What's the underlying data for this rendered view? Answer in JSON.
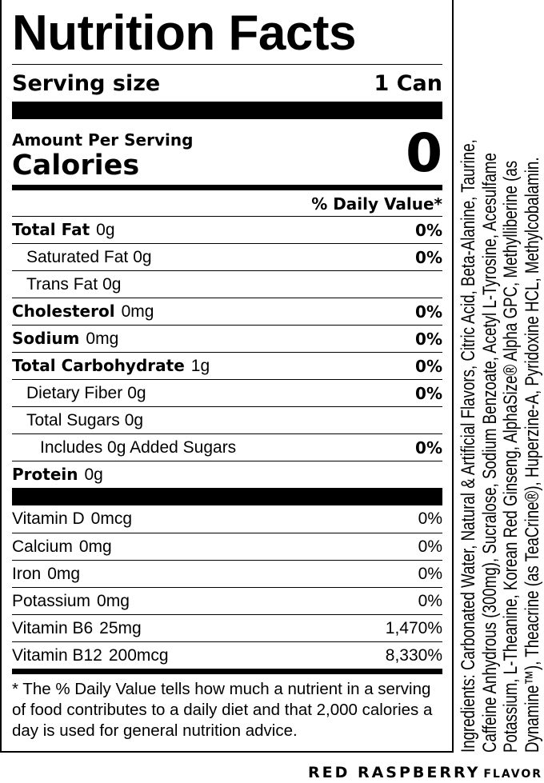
{
  "title": "Nutrition Facts",
  "serving": {
    "label": "Serving size",
    "value": "1 Can"
  },
  "amount_per_serving": "Amount Per Serving",
  "calories": {
    "label": "Calories",
    "value": "0"
  },
  "dv_header": "% Daily Value*",
  "nutrients": [
    {
      "name": "Total Fat",
      "amount": "0g",
      "dv": "0%",
      "bold": true,
      "indent": 0
    },
    {
      "name": "Saturated Fat",
      "amount": "0g",
      "dv": "0%",
      "bold": false,
      "indent": 1
    },
    {
      "name": "Trans Fat",
      "amount": "0g",
      "dv": "",
      "bold": false,
      "indent": 1
    },
    {
      "name": "Cholesterol",
      "amount": "0mg",
      "dv": "0%",
      "bold": true,
      "indent": 0
    },
    {
      "name": "Sodium",
      "amount": "0mg",
      "dv": "0%",
      "bold": true,
      "indent": 0
    },
    {
      "name": "Total Carbohydrate",
      "amount": "1g",
      "dv": "0%",
      "bold": true,
      "indent": 0
    },
    {
      "name": "Dietary Fiber",
      "amount": "0g",
      "dv": "0%",
      "bold": false,
      "indent": 1
    },
    {
      "name": "Total Sugars",
      "amount": "0g",
      "dv": "",
      "bold": false,
      "indent": 1
    },
    {
      "name": "Includes 0g Added Sugars",
      "amount": "",
      "dv": "0%",
      "bold": false,
      "indent": 2
    },
    {
      "name": "Protein",
      "amount": "0g",
      "dv": "",
      "bold": true,
      "indent": 0
    }
  ],
  "vitamins": [
    {
      "name": "Vitamin D",
      "amount": "0mcg",
      "dv": "0%"
    },
    {
      "name": "Calcium",
      "amount": "0mg",
      "dv": "0%"
    },
    {
      "name": "Iron",
      "amount": "0mg",
      "dv": "0%"
    },
    {
      "name": "Potassium",
      "amount": "0mg",
      "dv": "0%"
    },
    {
      "name": "Vitamin B6",
      "amount": "25mg",
      "dv": "1,470%"
    },
    {
      "name": "Vitamin B12",
      "amount": "200mcg",
      "dv": "8,330%"
    }
  ],
  "footnote": "* The % Daily Value tells how much a nutrient in a serving of food contributes to a daily diet and that 2,000 calories a day is used for general nutrition advice.",
  "ingredients_lines": [
    "Ingredients: Carbonated Water, Natural & Artificial Flavors, Citric Acid, Beta-Alanine, Taurine,",
    "Caffeine Anhydrous (300mg), Sucralose, Sodium Benzoate, Acetyl L-Tyrosine, Acesulfame",
    "Potassium, L-Theanine, Korean Red Ginseng, AlphaSize® Alpha GPC, Methylliberine (as",
    "Dynamine™), Theacrine (as TeaCrine®), Huperzine-A, Pyridoxine HCL, Methylcobalamin."
  ],
  "flavor": {
    "name": "RED RASPBERRY",
    "suffix": "FLAVOR"
  }
}
